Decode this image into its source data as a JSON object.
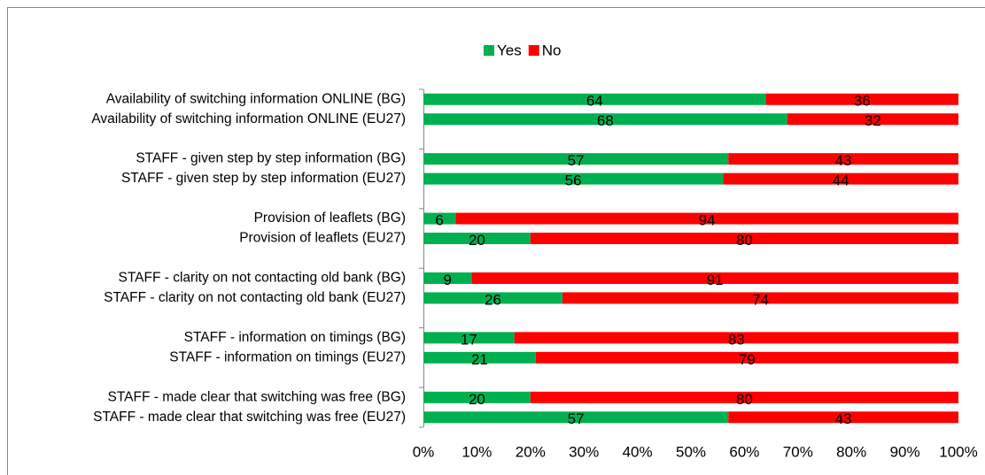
{
  "chart_data": {
    "type": "stacked_barh",
    "categories": [
      "Availability of switching information ONLINE (BG)",
      "Availability of switching information ONLINE (EU27)",
      null,
      "STAFF - given step by step information (BG)",
      "STAFF - given step by step information (EU27)",
      null,
      "Provision of leaflets (BG)",
      "Provision of leaflets (EU27)",
      null,
      "STAFF - clarity on not contacting old bank (BG)",
      "STAFF - clarity on not contacting old bank (EU27)",
      null,
      "STAFF - information on timings (BG)",
      "STAFF - information on timings (EU27)",
      null,
      "STAFF - made clear that switching was free (BG)",
      "STAFF - made clear that switching was free (EU27)"
    ],
    "series": [
      {
        "name": "Yes",
        "color": "#00b050",
        "values": [
          64,
          68,
          null,
          57,
          56,
          null,
          6,
          20,
          null,
          9,
          26,
          null,
          17,
          21,
          null,
          20,
          57
        ]
      },
      {
        "name": "No",
        "color": "#ff0000",
        "values": [
          36,
          32,
          null,
          43,
          44,
          null,
          94,
          80,
          null,
          91,
          74,
          null,
          83,
          79,
          null,
          80,
          43
        ]
      }
    ],
    "xlim": [
      0,
      100
    ],
    "xticks": [
      {
        "value": 0,
        "label": "0%"
      },
      {
        "value": 10,
        "label": "10%"
      },
      {
        "value": 20,
        "label": "20%"
      },
      {
        "value": 30,
        "label": "30%"
      },
      {
        "value": 40,
        "label": "40%"
      },
      {
        "value": 50,
        "label": "50%"
      },
      {
        "value": 60,
        "label": "60%"
      },
      {
        "value": 70,
        "label": "70%"
      },
      {
        "value": 80,
        "label": "80%"
      },
      {
        "value": 90,
        "label": "90%"
      },
      {
        "value": 100,
        "label": "100%"
      }
    ],
    "legend": "top"
  }
}
